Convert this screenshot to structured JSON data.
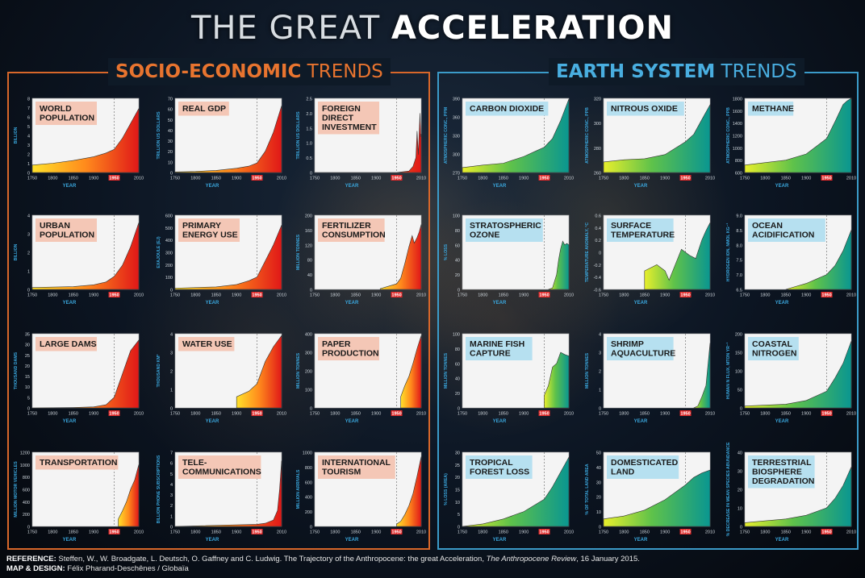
{
  "header": {
    "title_light": "THE GREAT ",
    "title_bold": "ACCELERATION"
  },
  "sections": {
    "socio_bold": "SOCIO-ECONOMIC",
    "socio_light": " TRENDS",
    "earth_bold": "EARTH SYSTEM",
    "earth_light": " TRENDS"
  },
  "colors": {
    "socio_accent": "#d8672a",
    "earth_accent": "#3b9bc9",
    "socio_label_bg": "#f4c7b6",
    "earth_label_bg": "#b6e0f0",
    "axis_text": "#3aa6dc",
    "year_1950": "#e02828"
  },
  "footer": {
    "reference_label": "REFERENCE:",
    "reference_text": " Steffen, W., W. Broadgate, L. Deutsch, O. Gaffney and C. Ludwig. The Trajectory of the Anthropocene: the great Acceleration, ",
    "reference_journal": "The Anthropocene Review",
    "reference_date": ", 16 January 2015.",
    "design_label": "MAP & DESIGN:",
    "design_text": " Félix Pharand-Deschênes / Globaïa"
  },
  "chart_data": [
    {
      "type": "area",
      "group": "socio",
      "title": [
        "WORLD",
        "POPULATION"
      ],
      "ylabel": "BILLION",
      "xlabel": "YEAR",
      "ylim": [
        0,
        8
      ],
      "yticks": [
        "0",
        "1",
        "2",
        "3",
        "4",
        "5",
        "6",
        "7",
        "8"
      ],
      "xticks": [
        "1750",
        "1800",
        "1850",
        "1900",
        "1950",
        "2010"
      ],
      "x": [
        1750,
        1800,
        1850,
        1900,
        1930,
        1950,
        1970,
        1990,
        2010
      ],
      "y": [
        0.8,
        1.0,
        1.3,
        1.7,
        2.1,
        2.5,
        3.7,
        5.3,
        6.9
      ]
    },
    {
      "type": "area",
      "group": "socio",
      "title": [
        "REAL GDP"
      ],
      "ylabel": "TRILLION US DOLLARS",
      "xlabel": "YEAR",
      "ylim": [
        0,
        70
      ],
      "yticks": [
        "0",
        "10",
        "20",
        "30",
        "40",
        "50",
        "60",
        "70"
      ],
      "xticks": [
        "1750",
        "1800",
        "1850",
        "1900",
        "1950",
        "2010"
      ],
      "x": [
        1750,
        1800,
        1850,
        1900,
        1930,
        1950,
        1970,
        1990,
        2010
      ],
      "y": [
        0.5,
        1,
        2,
        4,
        6,
        9,
        20,
        38,
        63
      ]
    },
    {
      "type": "area",
      "group": "socio",
      "title": [
        "FOREIGN",
        "DIRECT",
        "INVESTMENT"
      ],
      "ylabel": "TRILLION US DOLLARS",
      "xlabel": "YEAR",
      "ylim": [
        0,
        2.5
      ],
      "yticks": [
        "0",
        "0.5",
        "1.0",
        "1.5",
        "2.0",
        "2.5"
      ],
      "xticks": [
        "1750",
        "1800",
        "1850",
        "1900",
        "1950",
        "2010"
      ],
      "x": [
        1750,
        1950,
        1980,
        1990,
        1997,
        2000,
        2003,
        2007,
        2009,
        2010
      ],
      "y": [
        0,
        0,
        0.05,
        0.2,
        0.5,
        1.4,
        0.6,
        2.0,
        1.2,
        1.3
      ]
    },
    {
      "type": "area",
      "group": "socio",
      "title": [
        "URBAN",
        "POPULATION"
      ],
      "ylabel": "BILLION",
      "xlabel": "YEAR",
      "ylim": [
        0,
        4
      ],
      "yticks": [
        "0",
        "1",
        "2",
        "3",
        "4"
      ],
      "xticks": [
        "1750",
        "1800",
        "1850",
        "1900",
        "1950",
        "2010"
      ],
      "x": [
        1750,
        1850,
        1900,
        1930,
        1950,
        1970,
        1990,
        2010
      ],
      "y": [
        0.1,
        0.15,
        0.25,
        0.4,
        0.7,
        1.3,
        2.3,
        3.6
      ]
    },
    {
      "type": "area",
      "group": "socio",
      "title": [
        "PRIMARY",
        "ENERGY USE"
      ],
      "ylabel": "EXAJOULE (EJ)",
      "xlabel": "YEAR",
      "ylim": [
        0,
        600
      ],
      "yticks": [
        "0",
        "100",
        "200",
        "300",
        "400",
        "500",
        "600"
      ],
      "xticks": [
        "1750",
        "1800",
        "1850",
        "1900",
        "1950",
        "2010"
      ],
      "x": [
        1750,
        1850,
        1900,
        1930,
        1950,
        1970,
        1990,
        2010
      ],
      "y": [
        10,
        20,
        40,
        70,
        100,
        230,
        360,
        520
      ]
    },
    {
      "type": "area",
      "group": "socio",
      "title": [
        "FERTILIZER",
        "CONSUMPTION"
      ],
      "ylabel": "MILLION TONNES",
      "xlabel": "YEAR",
      "ylim": [
        0,
        200
      ],
      "yticks": [
        "0",
        "40",
        "80",
        "120",
        "160",
        "200"
      ],
      "xticks": [
        "1750",
        "1800",
        "1850",
        "1900",
        "1950",
        "2010"
      ],
      "x": [
        1910,
        1950,
        1960,
        1970,
        1980,
        1988,
        1993,
        2000,
        2005,
        2010
      ],
      "y": [
        2,
        15,
        30,
        70,
        115,
        145,
        125,
        140,
        155,
        175
      ]
    },
    {
      "type": "area",
      "group": "socio",
      "title": [
        "LARGE DAMS"
      ],
      "ylabel": "THOUSAND DAMS",
      "xlabel": "YEAR",
      "ylim": [
        0,
        35
      ],
      "yticks": [
        "0",
        "5",
        "10",
        "15",
        "20",
        "25",
        "30",
        "35"
      ],
      "xticks": [
        "1750",
        "1800",
        "1850",
        "1900",
        "1950",
        "2010"
      ],
      "x": [
        1750,
        1850,
        1900,
        1930,
        1950,
        1970,
        1990,
        2010
      ],
      "y": [
        0,
        0.2,
        0.5,
        1.5,
        5,
        16,
        27,
        32
      ]
    },
    {
      "type": "area",
      "group": "socio",
      "title": [
        "WATER USE"
      ],
      "ylabel": "THOUSAND KM³",
      "xlabel": "YEAR",
      "ylim": [
        0,
        4
      ],
      "yticks": [
        "0",
        "1",
        "2",
        "3",
        "4"
      ],
      "xticks": [
        "1750",
        "1800",
        "1850",
        "1900",
        "1950",
        "2010"
      ],
      "x": [
        1900,
        1930,
        1950,
        1970,
        1990,
        2010
      ],
      "y": [
        0.6,
        0.9,
        1.3,
        2.5,
        3.3,
        3.9
      ]
    },
    {
      "type": "area",
      "group": "socio",
      "title": [
        "PAPER",
        "PRODUCTION"
      ],
      "ylabel": "MILLION TONNES",
      "xlabel": "YEAR",
      "ylim": [
        0,
        400
      ],
      "yticks": [
        "0",
        "100",
        "200",
        "300",
        "400"
      ],
      "xticks": [
        "1750",
        "1800",
        "1850",
        "1900",
        "1950",
        "2010"
      ],
      "x": [
        1960,
        1970,
        1980,
        1990,
        2000,
        2010
      ],
      "y": [
        60,
        120,
        170,
        240,
        320,
        390
      ]
    },
    {
      "type": "area",
      "group": "socio",
      "title": [
        "TRANSPORTATION"
      ],
      "ylabel": "MILLION MOTOR VEHICLES",
      "xlabel": "YEAR",
      "ylim": [
        0,
        1200
      ],
      "yticks": [
        "0",
        "200",
        "400",
        "600",
        "800",
        "1000",
        "1200"
      ],
      "xticks": [
        "1750",
        "1800",
        "1850",
        "1900",
        "1950",
        "2010"
      ],
      "x": [
        1960,
        1970,
        1980,
        1990,
        2000,
        2010
      ],
      "y": [
        120,
        250,
        400,
        600,
        750,
        1000
      ]
    },
    {
      "type": "area",
      "group": "socio",
      "title": [
        "TELE-",
        "COMMUNICATIONS"
      ],
      "ylabel": "BILLION PHONE SUBSCRIPTIONS",
      "xlabel": "YEAR",
      "ylim": [
        0,
        7
      ],
      "yticks": [
        "0",
        "1",
        "2",
        "3",
        "4",
        "5",
        "6",
        "7"
      ],
      "xticks": [
        "1750",
        "1800",
        "1850",
        "1900",
        "1950",
        "2010"
      ],
      "x": [
        1750,
        1950,
        1970,
        1990,
        2000,
        2005,
        2010
      ],
      "y": [
        0,
        0.2,
        0.3,
        0.6,
        1.5,
        3.5,
        6.2
      ]
    },
    {
      "type": "area",
      "group": "socio",
      "title": [
        "INTERNATIONAL",
        "TOURISM"
      ],
      "ylabel": "MILLION ARRIVALS",
      "xlabel": "YEAR",
      "ylim": [
        0,
        1000
      ],
      "yticks": [
        "0",
        "200",
        "400",
        "600",
        "800",
        "1000"
      ],
      "xticks": [
        "1750",
        "1800",
        "1850",
        "1900",
        "1950",
        "2010"
      ],
      "x": [
        1950,
        1960,
        1970,
        1980,
        1990,
        2000,
        2010
      ],
      "y": [
        30,
        70,
        160,
        280,
        440,
        680,
        940
      ]
    },
    {
      "type": "area",
      "group": "earth",
      "title": [
        "CARBON DIOXIDE"
      ],
      "ylabel": "ATMOSPHERIC CONC., PPM",
      "xlabel": "YEAR",
      "ylim": [
        270,
        390
      ],
      "yticks": [
        "270",
        "300",
        "330",
        "360",
        "390"
      ],
      "xticks": [
        "1750",
        "1800",
        "1850",
        "1900",
        "1950",
        "2010"
      ],
      "x": [
        1750,
        1800,
        1850,
        1900,
        1930,
        1950,
        1970,
        1990,
        2010
      ],
      "y": [
        278,
        282,
        285,
        296,
        305,
        311,
        325,
        354,
        389
      ]
    },
    {
      "type": "area",
      "group": "earth",
      "title": [
        "NITROUS OXIDE"
      ],
      "ylabel": "ATMOSPHERIC CONC., PPB",
      "xlabel": "YEAR",
      "ylim": [
        260,
        330
      ],
      "yticks": [
        "260",
        "280",
        "300",
        "320"
      ],
      "xticks": [
        "1750",
        "1800",
        "1850",
        "1900",
        "1950",
        "2010"
      ],
      "x": [
        1750,
        1800,
        1850,
        1900,
        1950,
        1970,
        1990,
        2010
      ],
      "y": [
        270,
        272,
        273,
        277,
        289,
        296,
        310,
        324
      ]
    },
    {
      "type": "area",
      "group": "earth",
      "title": [
        "METHANE"
      ],
      "ylabel": "ATMOSPHERIC CONC., PPB",
      "xlabel": "YEAR",
      "ylim": [
        600,
        1800
      ],
      "yticks": [
        "600",
        "800",
        "1000",
        "1200",
        "1400",
        "1600",
        "1800"
      ],
      "xticks": [
        "1750",
        "1800",
        "1850",
        "1900",
        "1950",
        "2010"
      ],
      "x": [
        1750,
        1800,
        1850,
        1900,
        1950,
        1970,
        1990,
        2000,
        2010
      ],
      "y": [
        720,
        760,
        800,
        900,
        1150,
        1420,
        1700,
        1760,
        1800
      ]
    },
    {
      "type": "area",
      "group": "earth",
      "title": [
        "STRATOSPHERIC",
        "OZONE"
      ],
      "ylabel": "% LOSS",
      "xlabel": "YEAR",
      "ylim": [
        0,
        100
      ],
      "yticks": [
        "0",
        "20",
        "40",
        "60",
        "80",
        "100"
      ],
      "xticks": [
        "1750",
        "1800",
        "1850",
        "1900",
        "1950",
        "2010"
      ],
      "x": [
        1960,
        1970,
        1980,
        1985,
        1990,
        1995,
        2000,
        2005,
        2010
      ],
      "y": [
        0,
        2,
        20,
        40,
        55,
        65,
        60,
        62,
        60
      ]
    },
    {
      "type": "area",
      "group": "earth",
      "title": [
        "SURFACE",
        "TEMPERATURE"
      ],
      "ylabel": "TEMPERATURE ANOMALY, °C",
      "xlabel": "YEAR",
      "ylim": [
        -0.6,
        0.6
      ],
      "yticks": [
        "-0.6",
        "-0.4",
        "-0.2",
        "0",
        "0.2",
        "0.4",
        "0.6"
      ],
      "xticks": [
        "1750",
        "1800",
        "1850",
        "1900",
        "1950",
        "2010"
      ],
      "x": [
        1850,
        1880,
        1900,
        1910,
        1940,
        1960,
        1975,
        1990,
        2000,
        2010
      ],
      "y": [
        -0.3,
        -0.2,
        -0.3,
        -0.45,
        0.05,
        -0.05,
        -0.1,
        0.2,
        0.35,
        0.48
      ]
    },
    {
      "type": "area",
      "group": "earth",
      "title": [
        "OCEAN",
        "ACIDIFICATION"
      ],
      "ylabel": "HYDROGEN ION, NMOL KG⁻¹",
      "xlabel": "YEAR",
      "ylim": [
        6.5,
        9
      ],
      "yticks": [
        "6.5",
        "7.0",
        "7.5",
        "8.0",
        "8.5",
        "9.0"
      ],
      "xticks": [
        "1750",
        "1800",
        "1850",
        "1900",
        "1950",
        "2010"
      ],
      "x": [
        1850,
        1900,
        1950,
        1970,
        1990,
        2010
      ],
      "y": [
        6.5,
        6.7,
        7.0,
        7.3,
        7.8,
        8.5
      ]
    },
    {
      "type": "area",
      "group": "earth",
      "title": [
        "MARINE FISH",
        "CAPTURE"
      ],
      "ylabel": "MILLION TONNES",
      "xlabel": "YEAR",
      "ylim": [
        0,
        100
      ],
      "yticks": [
        "0",
        "20",
        "40",
        "60",
        "80",
        "100"
      ],
      "xticks": [
        "1750",
        "1800",
        "1850",
        "1900",
        "1950",
        "2010"
      ],
      "x": [
        1950,
        1960,
        1970,
        1980,
        1990,
        2000,
        2010
      ],
      "y": [
        17,
        30,
        55,
        60,
        75,
        72,
        70
      ]
    },
    {
      "type": "area",
      "group": "earth",
      "title": [
        "SHRIMP",
        "AQUACULTURE"
      ],
      "ylabel": "MILLION TONNES",
      "xlabel": "YEAR",
      "ylim": [
        0,
        4
      ],
      "yticks": [
        "0",
        "1",
        "2",
        "3",
        "4"
      ],
      "xticks": [
        "1750",
        "1800",
        "1850",
        "1900",
        "1950",
        "2010"
      ],
      "x": [
        1970,
        1980,
        1990,
        2000,
        2010
      ],
      "y": [
        0,
        0.1,
        0.6,
        1.2,
        3.5
      ]
    },
    {
      "type": "area",
      "group": "earth",
      "title": [
        "COASTAL",
        "NITROGEN"
      ],
      "ylabel": "HUMAN N FLUX, MTON YR⁻¹",
      "xlabel": "YEAR",
      "ylim": [
        0,
        200
      ],
      "yticks": [
        "0",
        "50",
        "100",
        "150",
        "200"
      ],
      "xticks": [
        "1750",
        "1800",
        "1850",
        "1900",
        "1950",
        "2010"
      ],
      "x": [
        1750,
        1850,
        1900,
        1950,
        1970,
        1990,
        2010
      ],
      "y": [
        5,
        10,
        20,
        45,
        80,
        120,
        180
      ]
    },
    {
      "type": "area",
      "group": "earth",
      "title": [
        "TROPICAL",
        "FOREST LOSS"
      ],
      "ylabel": "% LOSS (AREA)",
      "xlabel": "YEAR",
      "ylim": [
        0,
        30
      ],
      "yticks": [
        "0",
        "5",
        "10",
        "15",
        "20",
        "25",
        "30"
      ],
      "xticks": [
        "1750",
        "1800",
        "1850",
        "1900",
        "1950",
        "2010"
      ],
      "x": [
        1750,
        1800,
        1850,
        1900,
        1950,
        1970,
        1990,
        2010
      ],
      "y": [
        0,
        1,
        3,
        6,
        11,
        16,
        22,
        28
      ]
    },
    {
      "type": "area",
      "group": "earth",
      "title": [
        "DOMESTICATED",
        "LAND"
      ],
      "ylabel": "% OF TOTAL LAND AREA",
      "xlabel": "YEAR",
      "ylim": [
        0,
        50
      ],
      "yticks": [
        "0",
        "10",
        "20",
        "30",
        "40",
        "50"
      ],
      "xticks": [
        "1750",
        "1800",
        "1850",
        "1900",
        "1950",
        "2010"
      ],
      "x": [
        1750,
        1800,
        1850,
        1900,
        1950,
        1970,
        1990,
        2010
      ],
      "y": [
        5,
        7,
        11,
        18,
        28,
        33,
        36,
        38
      ]
    },
    {
      "type": "area",
      "group": "earth",
      "title": [
        "TERRESTRIAL",
        "BIOSPHERE",
        "DEGRADATION"
      ],
      "ylabel": "% DECREASE IN MEAN SPECIES ABUNDANCE",
      "xlabel": "YEAR",
      "ylim": [
        0,
        40
      ],
      "yticks": [
        "0",
        "10",
        "20",
        "30",
        "40"
      ],
      "xticks": [
        "1750",
        "1800",
        "1850",
        "1900",
        "1950",
        "2010"
      ],
      "x": [
        1750,
        1800,
        1850,
        1900,
        1950,
        1970,
        1990,
        2010
      ],
      "y": [
        2,
        3,
        4,
        6,
        10,
        15,
        22,
        32
      ]
    }
  ]
}
